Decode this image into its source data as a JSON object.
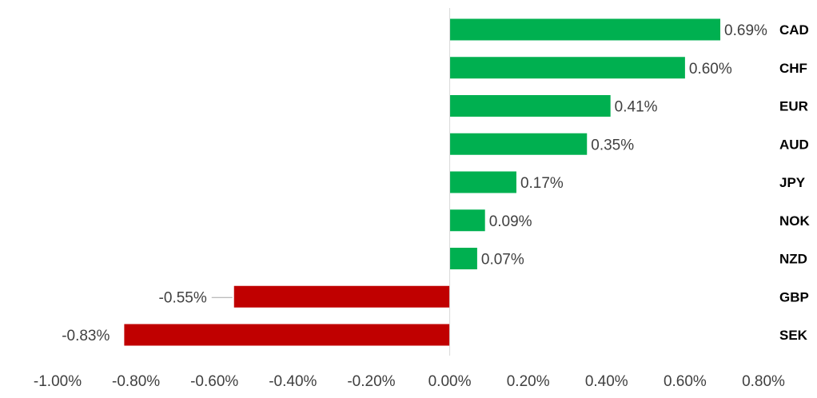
{
  "chart_data": {
    "type": "bar",
    "orientation": "horizontal",
    "categories": [
      "CAD",
      "CHF",
      "EUR",
      "AUD",
      "JPY",
      "NOK",
      "NZD",
      "GBP",
      "SEK"
    ],
    "values": [
      0.69,
      0.6,
      0.41,
      0.35,
      0.17,
      0.09,
      0.07,
      -0.55,
      -0.83
    ],
    "data_labels": [
      "0.69%",
      "0.60%",
      "0.41%",
      "0.35%",
      "0.17%",
      "0.09%",
      "0.07%",
      "-0.55%",
      "-0.83%"
    ],
    "x_ticks": [
      -1.0,
      -0.8,
      -0.6,
      -0.4,
      -0.2,
      0.0,
      0.2,
      0.4,
      0.6,
      0.8
    ],
    "x_tick_labels": [
      "-1.00%",
      "-0.80%",
      "-0.60%",
      "-0.40%",
      "-0.20%",
      "0.00%",
      "0.20%",
      "0.40%",
      "0.60%",
      "0.80%"
    ],
    "xlim": [
      -1.0,
      0.8
    ],
    "title": "",
    "xlabel": "",
    "ylabel": "",
    "grid": false,
    "legend": "none",
    "colors": {
      "positive": "#00b050",
      "negative": "#c00000",
      "axis": "#d9d9d9"
    }
  }
}
